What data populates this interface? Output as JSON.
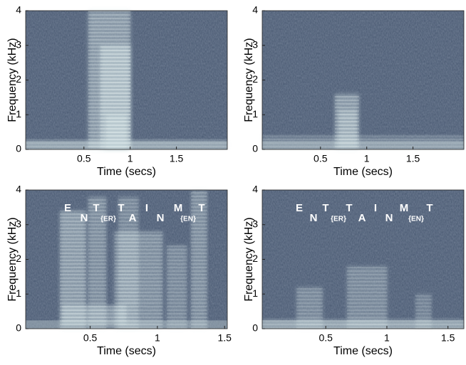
{
  "chart_data": [
    {
      "type": "spectrogram",
      "xlabel": "Time (secs)",
      "ylabel": "Frequency (kHz)",
      "xlim": [
        -0.13,
        2.05
      ],
      "ylim": [
        0,
        4
      ],
      "xticks": [
        0.5,
        1,
        1.5
      ],
      "yticks": [
        0,
        1,
        2,
        3,
        4
      ]
    },
    {
      "type": "spectrogram",
      "xlabel": "Time (secs)",
      "ylabel": "Frequency (kHz)",
      "xlim": [
        -0.13,
        2.05
      ],
      "ylim": [
        0,
        4
      ],
      "xticks": [
        0.5,
        1,
        1.5
      ],
      "yticks": [
        0,
        1,
        2,
        3,
        4
      ]
    },
    {
      "type": "spectrogram",
      "xlabel": "Time (secs)",
      "ylabel": "Frequency (kHz)",
      "xlim": [
        0.02,
        1.52
      ],
      "ylim": [
        0,
        4
      ],
      "xticks": [
        0.5,
        1,
        1.5
      ],
      "yticks": [
        0,
        1,
        2,
        3,
        4
      ],
      "annotations": [
        "E",
        "N",
        "T",
        "{ER}",
        "T",
        "A",
        "I",
        "N",
        "M",
        "{EN}",
        "T"
      ]
    },
    {
      "type": "spectrogram",
      "xlabel": "Time (secs)",
      "ylabel": "Frequency (kHz)",
      "xlim": [
        -0.02,
        1.63
      ],
      "ylim": [
        0,
        4
      ],
      "xticks": [
        0.5,
        1,
        1.5
      ],
      "yticks": [
        0,
        1,
        2,
        3,
        4
      ],
      "annotations": [
        "E",
        "N",
        "T",
        "{ER}",
        "T",
        "A",
        "I",
        "N",
        "M",
        "{EN}",
        "T"
      ]
    }
  ]
}
